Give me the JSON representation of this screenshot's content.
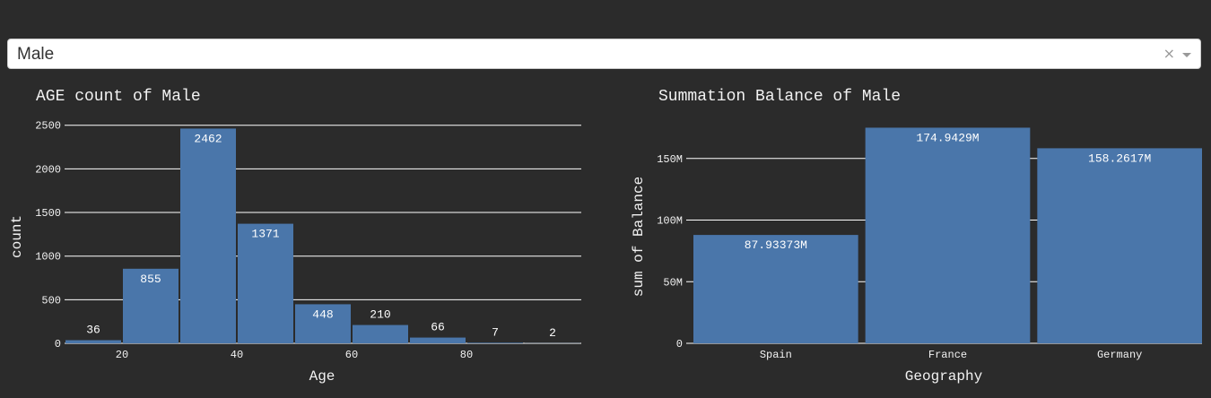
{
  "dropdown": {
    "value": "Male",
    "clear_symbol": "×"
  },
  "colors": {
    "background": "#2b2b2b",
    "bar": "#4a76aa",
    "text": "#f2f2f2",
    "grid": "#ffffff"
  },
  "chart_data": [
    {
      "type": "bar",
      "title": "AGE count of Male",
      "xlabel": "Age",
      "ylabel": "count",
      "x": [
        15,
        25,
        35,
        45,
        55,
        65,
        75,
        85,
        95
      ],
      "values": [
        36,
        855,
        2462,
        1371,
        448,
        210,
        66,
        7,
        2
      ],
      "labels": [
        "36",
        "855",
        "2462",
        "1371",
        "448",
        "210",
        "66",
        "7",
        "2"
      ],
      "bin_width": 10,
      "xlim": [
        10,
        100
      ],
      "ylim": [
        0,
        2600
      ],
      "xticks": [
        20,
        40,
        60,
        80
      ],
      "yticks": [
        0,
        500,
        1000,
        1500,
        2000,
        2500
      ],
      "grid": true
    },
    {
      "type": "bar",
      "title": "Summation Balance of Male",
      "xlabel": "Geography",
      "ylabel": "sum of Balance",
      "categories": [
        "Spain",
        "France",
        "Germany"
      ],
      "values": [
        87.93373,
        174.9429,
        158.2617
      ],
      "labels": [
        "87.93373M",
        "174.9429M",
        "158.2617M"
      ],
      "unit": "M",
      "ylim": [
        0,
        184
      ],
      "yticks": [
        0,
        50,
        100,
        150
      ],
      "ytick_labels": [
        "0",
        "50M",
        "100M",
        "150M"
      ],
      "grid": true
    }
  ]
}
